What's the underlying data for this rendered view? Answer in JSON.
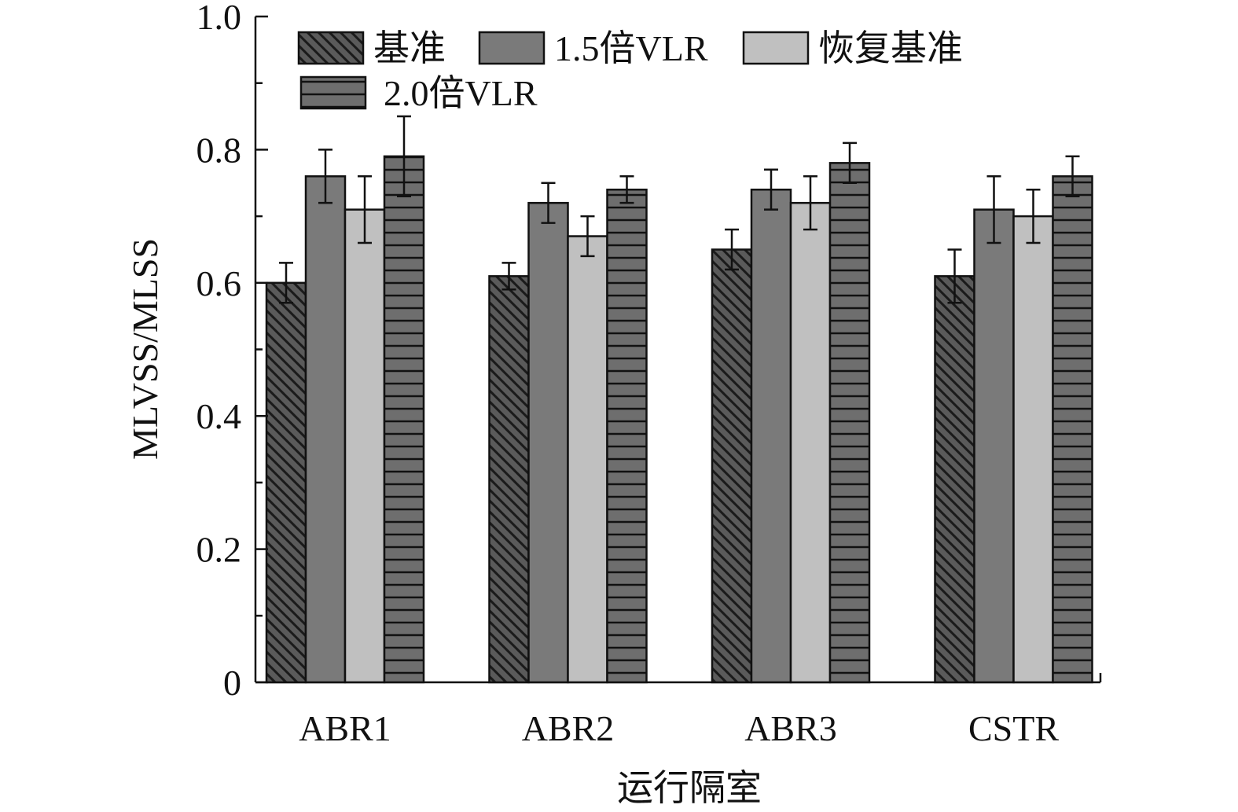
{
  "chart_data": {
    "type": "bar",
    "title": "",
    "xlabel": "运行隔室",
    "ylabel": "MLVSS/MLSS",
    "ylim": [
      0,
      1.0
    ],
    "yticks": [
      "0",
      "0.2",
      "0.4",
      "0.6",
      "0.8",
      "1.0"
    ],
    "categories": [
      "ABR1",
      "ABR2",
      "ABR3",
      "CSTR"
    ],
    "legend_position": "top-left",
    "grid": false,
    "series": [
      {
        "name": "基准",
        "pattern": "diagonal-hatch",
        "color": "#5a5a5a",
        "values": [
          0.6,
          0.61,
          0.65,
          0.61
        ],
        "errors": [
          0.03,
          0.02,
          0.03,
          0.04
        ]
      },
      {
        "name": "1.5倍VLR",
        "pattern": "solid",
        "color": "#7a7a7a",
        "values": [
          0.76,
          0.72,
          0.74,
          0.71
        ],
        "errors": [
          0.04,
          0.03,
          0.03,
          0.05
        ]
      },
      {
        "name": "恢复基准",
        "pattern": "solid",
        "color": "#c0c0c0",
        "values": [
          0.71,
          0.67,
          0.72,
          0.7
        ],
        "errors": [
          0.05,
          0.03,
          0.04,
          0.04
        ]
      },
      {
        "name": "2.0倍VLR",
        "pattern": "horizontal-lines",
        "color": "#6e6e6e",
        "values": [
          0.79,
          0.74,
          0.78,
          0.76
        ],
        "errors": [
          0.06,
          0.02,
          0.03,
          0.03
        ]
      }
    ]
  }
}
